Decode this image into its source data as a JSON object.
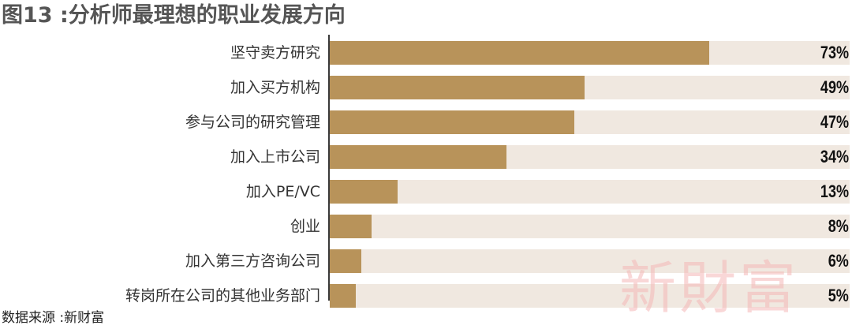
{
  "title": "图13 :分析师最理想的职业发展方向",
  "source": "数据来源 :新财富",
  "watermark": "新財富",
  "colors": {
    "bar": "#b8935a",
    "track": "#f0e8e0"
  },
  "chart_data": {
    "type": "bar",
    "orientation": "horizontal",
    "title": "图13 :分析师最理想的职业发展方向",
    "categories": [
      "坚守卖方研究",
      "加入买方机构",
      "参与公司的研究管理",
      "加入上市公司",
      "加入PE/VC",
      "创业",
      "加入第三方咨询公司",
      "转岗所在公司的其他业务部门"
    ],
    "values": [
      73,
      49,
      47,
      34,
      13,
      8,
      6,
      5
    ],
    "value_labels": [
      "73%",
      "49%",
      "47%",
      "34%",
      "13%",
      "8%",
      "6%",
      "5%"
    ],
    "xlim": [
      0,
      100
    ],
    "grid": false,
    "legend": "none"
  }
}
